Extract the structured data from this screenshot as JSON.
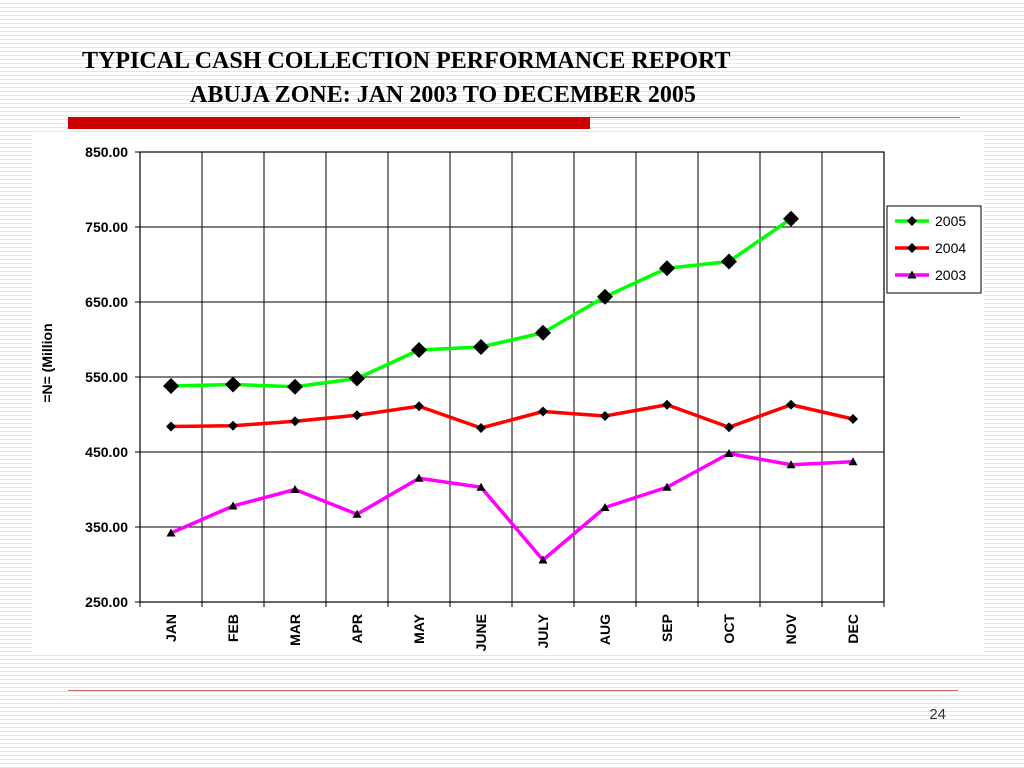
{
  "slide": {
    "title_line1": "TYPICAL CASH COLLECTION PERFORMANCE REPORT",
    "title_line2": "ABUJA ZONE: JAN 2003 TO DECEMBER 2005",
    "page_number": "24",
    "accent_color": "#cc0000",
    "rule_color": "#cc6666"
  },
  "chart_data": {
    "type": "line",
    "title": "",
    "xlabel": "",
    "ylabel": "=N= (Million",
    "categories": [
      "JAN",
      "FEB",
      "MAR",
      "APR",
      "MAY",
      "JUNE",
      "JULY",
      "AUG",
      "SEP",
      "OCT",
      "NOV",
      "DEC"
    ],
    "ylim": [
      250,
      850
    ],
    "yticks": [
      "850.00",
      "750.00",
      "650.00",
      "550.00",
      "450.00",
      "350.00",
      "250.00"
    ],
    "grid": true,
    "legend_position": "right",
    "series": [
      {
        "name": "2005",
        "color": "#00ff00",
        "marker": "diamond-large",
        "values": [
          538,
          540,
          537,
          548,
          586,
          590,
          609,
          657,
          695,
          704,
          761,
          null
        ]
      },
      {
        "name": "2004",
        "color": "#ff0000",
        "marker": "diamond-small",
        "values": [
          484,
          485,
          491,
          499,
          511,
          482,
          504,
          498,
          513,
          483,
          513,
          494
        ]
      },
      {
        "name": "2003",
        "color": "#ff00ff",
        "marker": "triangle",
        "values": [
          342,
          378,
          400,
          367,
          415,
          403,
          306,
          376,
          403,
          448,
          433,
          437
        ]
      }
    ]
  }
}
